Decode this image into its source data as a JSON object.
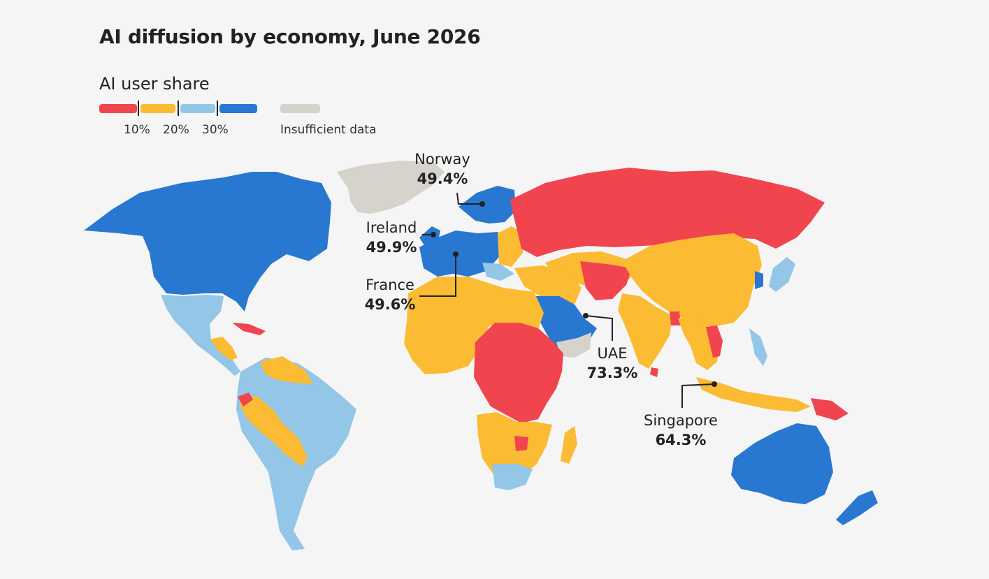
{
  "title": "AI diffusion by economy, June 2026",
  "legend": {
    "title": "AI user share",
    "ticks": [
      "10%",
      "20%",
      "30%"
    ],
    "insufficient_label": "Insufficient data",
    "colors": {
      "under_10": "#f0444f",
      "10_20": "#fbbb32",
      "20_30": "#93c6e7",
      "over_30": "#2877d1",
      "insufficient": "#d6d2cc"
    }
  },
  "callouts": [
    {
      "name": "Norway",
      "value": "49.4%"
    },
    {
      "name": "Ireland",
      "value": "49.9%"
    },
    {
      "name": "France",
      "value": "49.6%"
    },
    {
      "name": "UAE",
      "value": "73.3%"
    },
    {
      "name": "Singapore",
      "value": "64.3%"
    }
  ]
}
